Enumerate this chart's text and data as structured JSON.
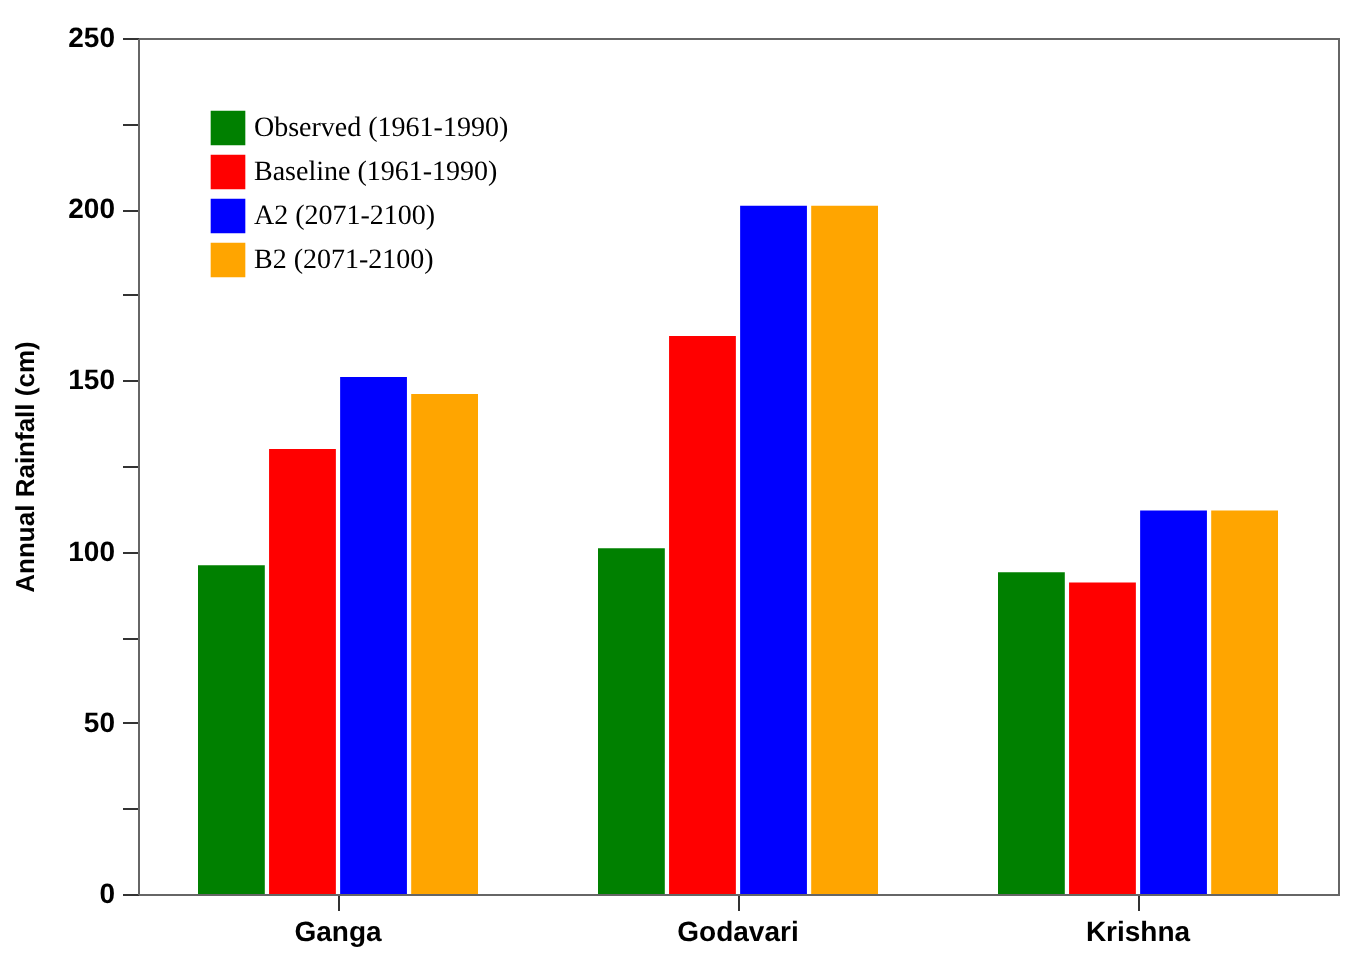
{
  "chart_data": {
    "type": "bar",
    "ylabel": "Annual Rainfall (cm)",
    "categories": [
      "Ganga",
      "Godavari",
      "Krishna"
    ],
    "series": [
      {
        "name": "Observed (1961-1990)",
        "color": "#008000",
        "values": [
          96,
          101,
          94
        ]
      },
      {
        "name": "Baseline (1961-1990)",
        "color": "#ff0000",
        "values": [
          130,
          163,
          91
        ]
      },
      {
        "name": "A2 (2071-2100)",
        "color": "#0000ff",
        "values": [
          151,
          201,
          112
        ]
      },
      {
        "name": "B2 (2071-2100)",
        "color": "#ffa500",
        "values": [
          146,
          201,
          112
        ]
      }
    ],
    "ylim": [
      0,
      250
    ],
    "yticks": [
      0,
      {
        "value": 25,
        "label": null
      },
      50,
      {
        "value": 75,
        "label": null
      },
      100,
      {
        "value": 125,
        "label": null
      },
      150,
      {
        "value": 175,
        "label": null
      },
      200,
      {
        "value": 225,
        "label": null
      },
      250
    ],
    "grid": false,
    "legend": "top left"
  }
}
